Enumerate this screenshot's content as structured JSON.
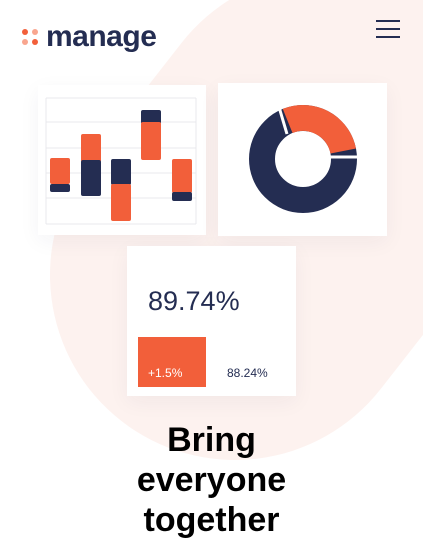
{
  "brand": {
    "name": "manage",
    "accent": "#f25f3a",
    "accent_light": "#f9a68f",
    "navy": "#242d52"
  },
  "header": {
    "menu_icon": "hamburger-menu-icon"
  },
  "bar_chart": {
    "bars": [
      {
        "navy": [
          0,
          0
        ],
        "orange": [
          0,
          0
        ]
      }
    ]
  },
  "donut_chart": {
    "segments": [
      {
        "color": "#f25f3a",
        "fraction": 0.28
      },
      {
        "color": "#242d52",
        "fraction": 0.72
      }
    ]
  },
  "stats": {
    "main_value": "89.74%",
    "change": "+1.5%",
    "secondary_value": "88.24%"
  },
  "hero": {
    "headline_lines": [
      "Bring",
      "everyone",
      "together"
    ]
  }
}
